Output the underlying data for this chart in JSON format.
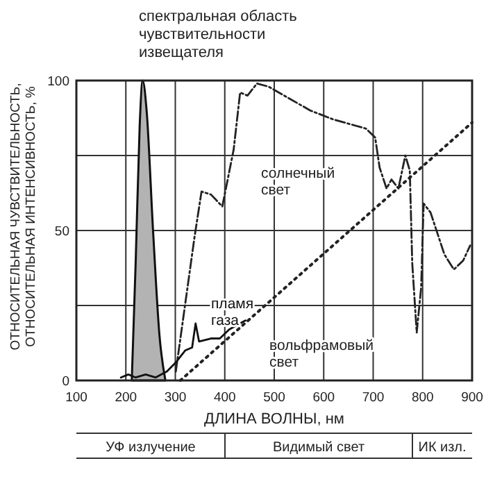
{
  "chart_data": {
    "type": "line",
    "title": "спектральная область\nчувствительности\nизвещателя",
    "xlabel": "ДЛИНА ВОЛНЫ, нм",
    "ylabel": "ОТНОСИТЕЛЬНАЯ ЧУВСТВИТЕЛЬНОСТЬ,\nОТНОСИТЕЛЬНАЯ ИНТЕНСИВНОСТЬ, %",
    "xlim": [
      100,
      900
    ],
    "xticks": [
      100,
      200,
      300,
      400,
      500,
      600,
      700,
      800,
      900
    ],
    "ylim": [
      0,
      100
    ],
    "yticks": [
      0,
      {
        "value": 25,
        "label": null
      },
      50,
      {
        "value": 75,
        "label": null
      },
      100
    ],
    "grid": true,
    "series": [
      {
        "type": "area",
        "color": "#b3b3b3",
        "x": [
          212,
          220,
          228,
          234,
          242,
          255,
          268,
          280
        ],
        "values": [
          0,
          40,
          85,
          100,
          90,
          50,
          15,
          0
        ]
      },
      {
        "name": "солнечный свет",
        "color": "#222222",
        "line_style": "dashed",
        "x": [
          301,
          339,
          353,
          372,
          395,
          418,
          431,
          446,
          465,
          488,
          573,
          620,
          685,
          704,
          713,
          727,
          737,
          751,
          765,
          774,
          779,
          788,
          797,
          802,
          816,
          844,
          863,
          882,
          896
        ],
        "values": [
          3,
          48,
          63,
          62,
          58,
          77,
          96,
          95,
          99,
          98,
          90,
          87,
          84,
          81,
          71,
          64,
          67,
          64,
          75,
          70,
          39,
          16,
          31,
          59,
          56,
          42,
          37,
          40,
          45
        ]
      },
      {
        "name": "пламя газа",
        "color": "#111111",
        "line_style": "solid",
        "x": [
          190,
          205,
          220,
          240,
          260,
          283,
          301,
          320,
          334,
          341,
          348,
          372,
          390,
          409,
          442
        ],
        "values": [
          1,
          2,
          1,
          2,
          1,
          3,
          6,
          10,
          11,
          19,
          13,
          14,
          14,
          17,
          20
        ]
      },
      {
        "name": "вольфрамовый свет",
        "color": "#222222",
        "line_style": "dotted",
        "x": [
          310,
          900
        ],
        "values": [
          0,
          86
        ]
      }
    ],
    "annotations": [
      "УФ излучение",
      "Видимый свет",
      "ИК изл."
    ]
  }
}
